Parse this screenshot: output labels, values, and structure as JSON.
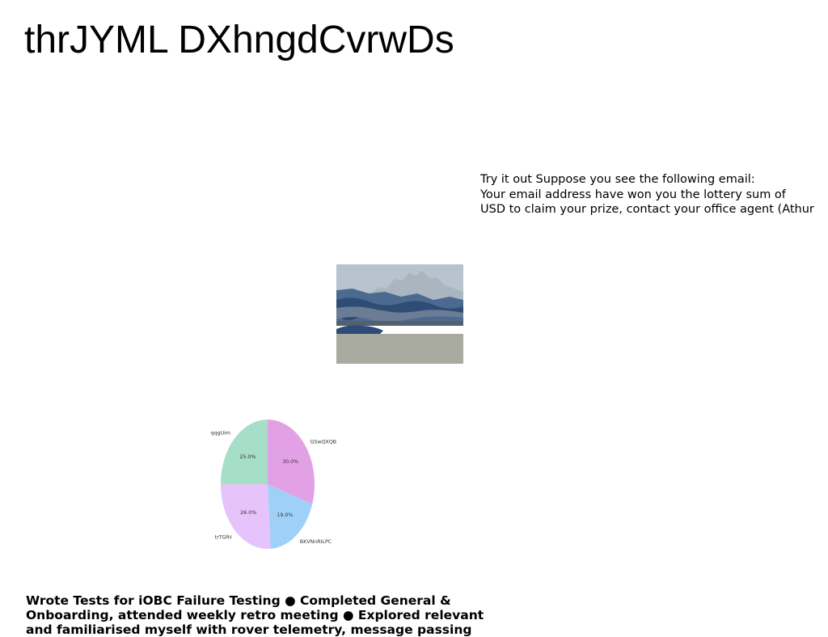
{
  "page": {
    "title": "thrJYML DXhngdCvrwDs"
  },
  "email_example": {
    "lines": [
      "Try it out Suppose you see the following email:",
      "Your email address have won you the lottery sum of",
      "USD to claim your prize, contact your office agent (Athur"
    ]
  },
  "landscape_image": {
    "icon": "mountain-landscape-photo",
    "colors": {
      "sky": "#b7c4cf",
      "mountains": "#a9b5bf",
      "hills": "#3f5e86",
      "water": "#a9aba0"
    }
  },
  "chart_data": {
    "type": "pie",
    "categories": [
      "GSwQXQB",
      "BKVNnRILPC",
      "trTGfH",
      "qqgUim"
    ],
    "values": [
      30.0,
      19.0,
      26.0,
      25.0
    ],
    "value_labels": [
      "30.0%",
      "19.0%",
      "26.0%",
      "25.0%"
    ],
    "colors": [
      "#e3a1e5",
      "#9fd1f8",
      "#e6c3fb",
      "#a6dec7"
    ],
    "start_angle_deg": 90,
    "direction": "clockwise",
    "title": ""
  },
  "bottom_text": {
    "lines": [
      "Wrote Tests for iOBC Failure Testing ● Completed General &",
      "Onboarding, attended weekly retro meeting ● Explored relevant",
      "and familiarised myself with rover telemetry, message passing"
    ]
  }
}
